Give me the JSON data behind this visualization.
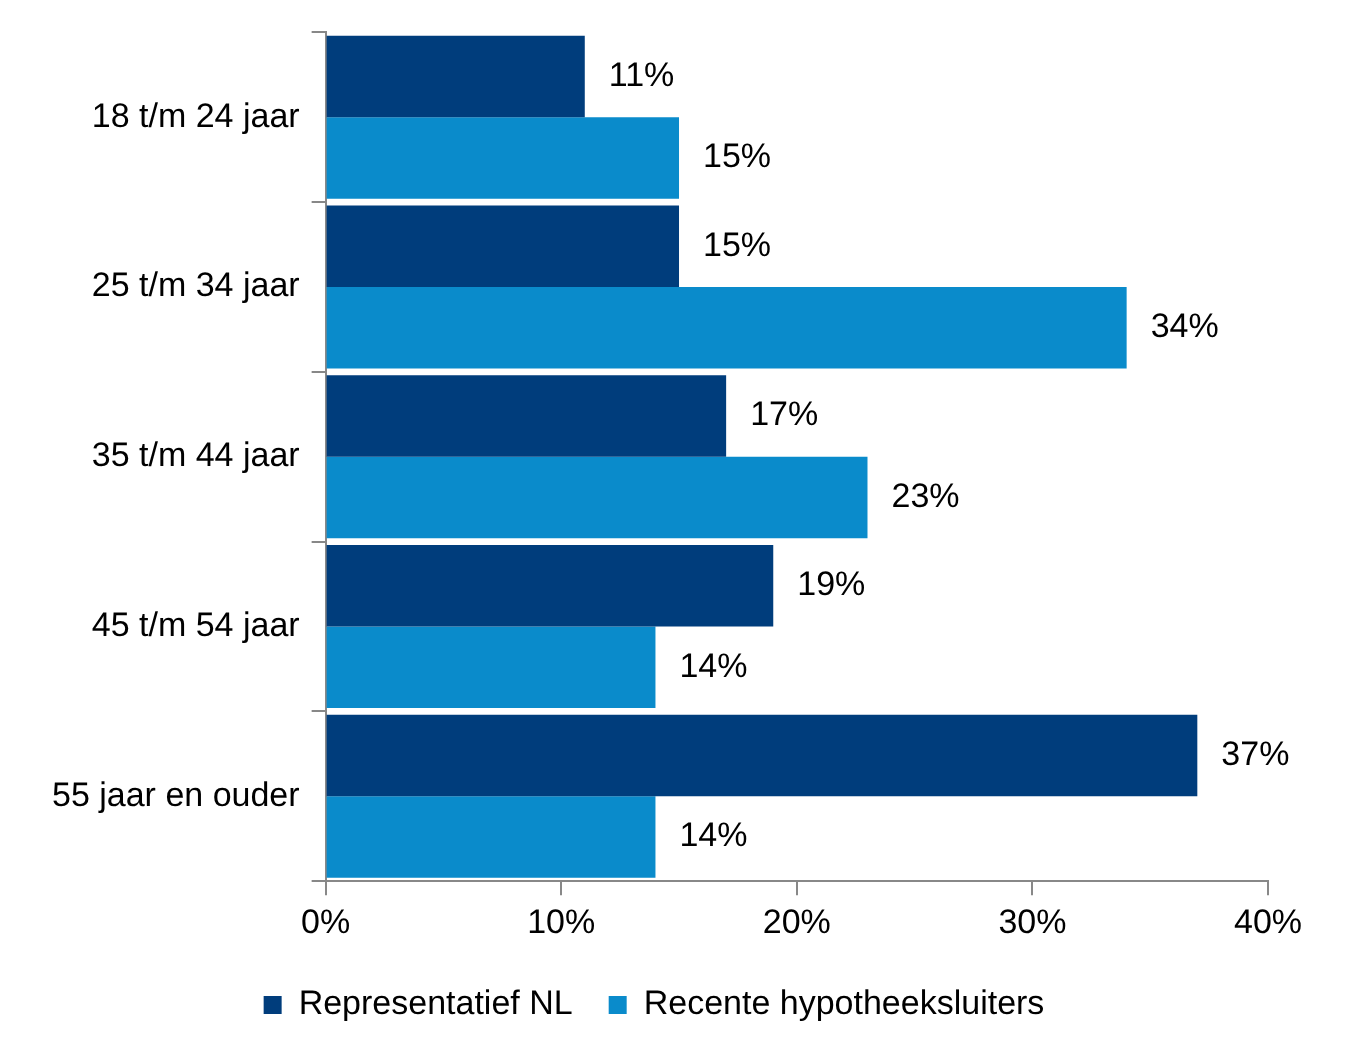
{
  "chart_data": {
    "type": "bar",
    "orientation": "horizontal",
    "categories": [
      "18 t/m 24 jaar",
      "25 t/m 34 jaar",
      "35 t/m 44 jaar",
      "45 t/m 54 jaar",
      "55 jaar en ouder"
    ],
    "series": [
      {
        "name": "Representatief NL",
        "color": "#003d7c",
        "values": [
          11,
          15,
          17,
          19,
          37
        ],
        "value_labels": [
          "11%",
          "15%",
          "17%",
          "19%",
          "37%"
        ]
      },
      {
        "name": "Recente hypotheeksluiters",
        "color": "#0a8bcb",
        "values": [
          15,
          34,
          23,
          14,
          14
        ],
        "value_labels": [
          "15%",
          "34%",
          "23%",
          "14%",
          "14%"
        ]
      }
    ],
    "xlim": [
      0,
      40
    ],
    "xticks": [
      {
        "value": 0,
        "label": "0%"
      },
      {
        "value": 10,
        "label": "10%"
      },
      {
        "value": 20,
        "label": "20%"
      },
      {
        "value": 30,
        "label": "30%"
      },
      {
        "value": 40,
        "label": "40%"
      }
    ],
    "grid": false,
    "legend": "bottom"
  }
}
